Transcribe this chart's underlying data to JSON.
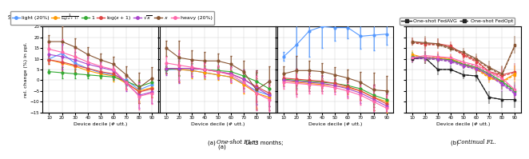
{
  "x": [
    10,
    20,
    30,
    40,
    50,
    60,
    70,
    80,
    90
  ],
  "caption_left": "(a) One-shot FL. Left: 3 months; middle: 6 months; right: 11 months.",
  "caption_right": "(b) Continual FL.",
  "ylabel": "rel. change (%) in ppl.",
  "xlabel": "Device decile (# utt.)",
  "ylim": [
    -15,
    25
  ],
  "yticks": [
    -15,
    -10,
    -5,
    0,
    5,
    10,
    15,
    20,
    25
  ],
  "xticks": [
    10,
    20,
    30,
    40,
    50,
    60,
    70,
    80,
    90
  ],
  "panel1": {
    "light": [
      10.0,
      12.5,
      8.0,
      5.5,
      3.5,
      2.5,
      0.0,
      -4.5,
      -2.0
    ],
    "invlog": [
      9.5,
      8.0,
      6.5,
      4.5,
      3.0,
      2.0,
      -1.5,
      -5.0,
      -3.5
    ],
    "one": [
      4.0,
      3.5,
      3.0,
      2.5,
      2.0,
      1.5,
      -0.5,
      -3.0,
      -1.0
    ],
    "logx": [
      9.5,
      8.5,
      7.0,
      5.5,
      4.0,
      3.0,
      -1.0,
      -5.5,
      -4.0
    ],
    "sqrtx": [
      12.0,
      11.0,
      9.5,
      7.5,
      6.0,
      4.5,
      -1.5,
      -7.0,
      -5.5
    ],
    "x": [
      18.0,
      18.0,
      15.5,
      12.0,
      9.5,
      7.5,
      2.5,
      -3.5,
      1.0
    ],
    "heavy": [
      14.5,
      13.0,
      11.0,
      8.5,
      6.5,
      5.0,
      -1.0,
      -7.5,
      -6.0
    ],
    "light_err": [
      1.5,
      4.0,
      2.5,
      2.0,
      1.5,
      2.0,
      2.5,
      4.0,
      3.0
    ],
    "invlog_err": [
      2.0,
      5.0,
      3.0,
      2.5,
      2.0,
      2.5,
      3.0,
      5.0,
      4.0
    ],
    "one_err": [
      1.0,
      2.5,
      2.0,
      1.5,
      1.0,
      1.5,
      2.0,
      3.0,
      2.0
    ],
    "logx_err": [
      2.0,
      5.0,
      3.0,
      2.5,
      2.0,
      2.5,
      3.0,
      5.0,
      4.0
    ],
    "sqrtx_err": [
      2.5,
      6.0,
      3.5,
      3.0,
      2.5,
      3.0,
      3.5,
      6.0,
      5.0
    ],
    "x_err": [
      3.0,
      7.0,
      4.0,
      3.5,
      3.0,
      3.5,
      4.0,
      7.0,
      5.0
    ],
    "heavy_err": [
      2.5,
      6.0,
      3.5,
      3.0,
      2.5,
      3.0,
      3.5,
      6.0,
      5.0
    ]
  },
  "panel2": {
    "light": [
      5.0,
      5.0,
      4.5,
      3.5,
      2.5,
      1.5,
      -1.5,
      -5.0,
      -7.0
    ],
    "invlog": [
      5.5,
      5.0,
      4.5,
      3.5,
      2.5,
      1.5,
      -2.0,
      -6.0,
      -8.0
    ],
    "one": [
      5.0,
      5.5,
      5.5,
      5.0,
      4.5,
      4.0,
      2.0,
      -0.5,
      -4.0
    ],
    "logx": [
      5.5,
      5.5,
      5.5,
      5.0,
      4.0,
      3.0,
      0.5,
      -3.0,
      -6.0
    ],
    "sqrtx": [
      5.5,
      5.5,
      5.5,
      5.0,
      4.0,
      3.0,
      0.5,
      -3.5,
      -7.0
    ],
    "x": [
      15.0,
      10.5,
      9.5,
      9.0,
      9.0,
      7.5,
      4.0,
      -4.5,
      -0.5
    ],
    "heavy": [
      8.0,
      7.0,
      6.0,
      5.0,
      4.0,
      2.5,
      -1.0,
      -6.0,
      -9.0
    ],
    "light_err": [
      2.0,
      5.0,
      3.0,
      2.5,
      2.0,
      2.5,
      3.5,
      6.0,
      5.0
    ],
    "invlog_err": [
      2.5,
      6.0,
      3.5,
      3.0,
      2.5,
      3.0,
      4.0,
      7.0,
      6.0
    ],
    "one_err": [
      1.5,
      3.5,
      2.5,
      2.0,
      1.5,
      2.0,
      2.5,
      4.0,
      3.0
    ],
    "logx_err": [
      2.5,
      6.0,
      3.5,
      3.0,
      2.5,
      3.0,
      4.0,
      7.0,
      6.0
    ],
    "sqrtx_err": [
      3.0,
      7.0,
      4.0,
      3.5,
      3.0,
      3.5,
      4.5,
      8.0,
      7.0
    ],
    "x_err": [
      3.5,
      8.0,
      4.5,
      4.0,
      3.5,
      4.0,
      5.0,
      9.0,
      7.0
    ],
    "heavy_err": [
      3.0,
      7.0,
      4.0,
      3.5,
      3.0,
      3.5,
      4.5,
      8.0,
      7.0
    ]
  },
  "panel3": {
    "light": [
      11.0,
      16.5,
      23.0,
      25.0,
      24.5,
      24.5,
      20.5,
      21.0,
      21.5
    ],
    "invlog": [
      0.0,
      -1.0,
      -1.5,
      -2.0,
      -2.5,
      -3.5,
      -5.0,
      -8.0,
      -10.0
    ],
    "one": [
      0.5,
      0.0,
      -0.5,
      -1.0,
      -1.5,
      -2.5,
      -4.0,
      -7.0,
      -9.0
    ],
    "logx": [
      1.0,
      0.5,
      0.0,
      -0.5,
      -1.5,
      -3.0,
      -5.0,
      -8.0,
      -11.0
    ],
    "sqrtx": [
      0.0,
      -0.5,
      -1.0,
      -1.5,
      -2.5,
      -4.0,
      -6.0,
      -9.0,
      -12.0
    ],
    "x": [
      3.0,
      4.5,
      4.5,
      4.0,
      2.5,
      1.0,
      -1.0,
      -4.5,
      -5.0
    ],
    "heavy": [
      -1.0,
      -1.5,
      -2.0,
      -2.5,
      -3.5,
      -5.0,
      -7.0,
      -10.0,
      -13.0
    ],
    "light_err": [
      2.0,
      12.0,
      12.0,
      10.0,
      6.0,
      5.0,
      6.0,
      7.0,
      5.0
    ],
    "invlog_err": [
      2.5,
      5.0,
      3.5,
      3.0,
      2.5,
      3.0,
      4.0,
      6.0,
      5.0
    ],
    "one_err": [
      1.5,
      3.5,
      2.5,
      2.0,
      1.5,
      2.0,
      2.5,
      4.0,
      3.0
    ],
    "logx_err": [
      2.5,
      5.0,
      3.5,
      3.0,
      2.5,
      3.0,
      4.0,
      6.0,
      5.0
    ],
    "sqrtx_err": [
      3.0,
      6.0,
      4.0,
      3.5,
      3.0,
      3.5,
      4.5,
      7.0,
      6.0
    ],
    "x_err": [
      3.5,
      7.0,
      4.5,
      4.0,
      3.5,
      4.0,
      5.0,
      8.0,
      7.0
    ],
    "heavy_err": [
      3.0,
      6.0,
      4.0,
      3.5,
      3.0,
      3.5,
      4.5,
      7.0,
      6.0
    ]
  },
  "panel4": {
    "black_avg": [
      10.0,
      10.5,
      5.0,
      5.0,
      2.5,
      2.0,
      -8.0,
      -9.0,
      -9.0
    ],
    "black_opt": [
      10.0,
      10.5,
      5.0,
      5.0,
      2.5,
      2.0,
      -8.0,
      -9.0,
      -9.0
    ],
    "red_avg": [
      18.0,
      17.0,
      17.0,
      16.0,
      12.0,
      9.0,
      4.0,
      2.5,
      4.0
    ],
    "red_opt": [
      17.5,
      16.5,
      16.5,
      15.5,
      11.5,
      8.5,
      3.5,
      2.0,
      3.5
    ],
    "orange_avg": [
      12.0,
      10.5,
      10.5,
      10.0,
      7.5,
      5.5,
      1.5,
      -0.5,
      3.0
    ],
    "orange_opt": [
      11.5,
      10.0,
      10.0,
      9.5,
      7.0,
      5.0,
      1.0,
      -1.0,
      2.5
    ],
    "green_avg": [
      11.0,
      10.5,
      10.0,
      9.5,
      7.5,
      6.0,
      3.0,
      -0.5,
      -5.0
    ],
    "green_opt": [
      10.5,
      10.0,
      9.5,
      9.0,
      7.0,
      5.5,
      2.5,
      -1.0,
      -5.5
    ],
    "purple_avg": [
      10.5,
      10.5,
      10.0,
      9.0,
      7.0,
      5.5,
      2.5,
      -1.5,
      -6.0
    ],
    "purple_opt": [
      10.0,
      10.0,
      9.5,
      8.5,
      6.5,
      5.0,
      2.0,
      -2.0,
      -6.5
    ],
    "brown_avg": [
      18.0,
      17.5,
      17.0,
      15.0,
      13.0,
      10.0,
      6.0,
      3.0,
      16.5
    ],
    "brown_opt": [
      17.5,
      17.0,
      16.5,
      14.5,
      12.5,
      9.5,
      5.5,
      2.5,
      16.0
    ],
    "pink_avg": [
      10.5,
      11.5,
      11.0,
      10.5,
      8.5,
      7.0,
      4.0,
      1.0,
      -4.5
    ],
    "pink_opt": [
      10.0,
      11.0,
      10.5,
      10.0,
      8.0,
      6.5,
      3.5,
      0.5,
      -5.0
    ],
    "err": [
      2.0,
      3.0,
      2.5,
      2.0,
      2.0,
      2.5,
      3.0,
      4.0,
      4.0
    ]
  },
  "colors": {
    "light": "#5599ff",
    "invlog": "#ff9900",
    "one": "#33aa33",
    "logx": "#dd4444",
    "sqrtx": "#aa44cc",
    "x": "#885533",
    "heavy": "#ff66aa"
  },
  "p4_colors": {
    "black": "#222222",
    "red": "#dd4444",
    "orange": "#ff9900",
    "green": "#33aa33",
    "purple": "#aa44cc",
    "brown": "#885533",
    "pink": "#ff66aa"
  },
  "markersize": 2.0,
  "linewidth": 0.8,
  "elinewidth": 0.5,
  "capsize": 0.8,
  "error_alpha": 0.35
}
